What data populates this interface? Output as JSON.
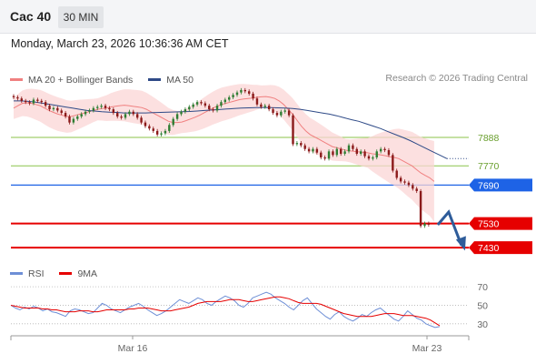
{
  "header": {
    "instrument": "Cac 40",
    "interval": "30 MIN"
  },
  "datetime": "Monday, March 23, 2026 10:36:36 AM CET",
  "legend": {
    "ma20_bb": "MA 20 + Bollinger Bands",
    "ma50": "MA 50",
    "copyright": "Research © 2026 Trading Central"
  },
  "rsi_legend": {
    "rsi": "RSI",
    "ma9": "9MA"
  },
  "colors": {
    "ma20": "#f08080",
    "ma50": "#2e4a87",
    "support": "#e60000",
    "pivot": "#1e63e6",
    "resistance": "#8bc34a",
    "rsi": "#6e8fd6",
    "candle_up": "#2e7d32",
    "candle_down": "#8b1a1a"
  },
  "chart_data": {
    "type": "candlestick",
    "price_range": [
      7400,
      8100
    ],
    "levels": [
      {
        "value": 7888,
        "label": "7888",
        "kind": "resistance"
      },
      {
        "value": 7770,
        "label": "7770",
        "kind": "resistance"
      },
      {
        "value": 7690,
        "label": "7690",
        "kind": "pivot"
      },
      {
        "value": 7530,
        "label": "7530",
        "kind": "support"
      },
      {
        "value": 7430,
        "label": "7430",
        "kind": "support"
      }
    ],
    "close_approx": [
      8055,
      8050,
      8040,
      8035,
      8030,
      8045,
      8040,
      8035,
      8020,
      8005,
      8010,
      8000,
      7990,
      7975,
      7950,
      7965,
      7975,
      7985,
      7995,
      8000,
      8010,
      8015,
      8020,
      8010,
      8005,
      7990,
      7975,
      7970,
      7985,
      7995,
      7985,
      7970,
      7950,
      7935,
      7925,
      7915,
      7900,
      7905,
      7915,
      7940,
      7965,
      7985,
      7995,
      8005,
      8015,
      8025,
      8035,
      8030,
      8020,
      8005,
      8000,
      8020,
      8035,
      8045,
      8055,
      8065,
      8075,
      8085,
      8080,
      8070,
      8050,
      8025,
      8015,
      8020,
      8005,
      7990,
      7980,
      7995,
      8000,
      7980,
      7860,
      7865,
      7855,
      7840,
      7830,
      7840,
      7825,
      7805,
      7800,
      7830,
      7815,
      7840,
      7820,
      7830,
      7855,
      7840,
      7820,
      7830,
      7810,
      7800,
      7805,
      7830,
      7840,
      7835,
      7815,
      7750,
      7720,
      7705,
      7700,
      7690,
      7675,
      7665,
      7520,
      7530,
      7525
    ],
    "ma20_approx": [
      8010,
      8020,
      8030,
      8032,
      8030,
      8025,
      8020,
      8010,
      8000,
      7992,
      7985,
      7980,
      7975,
      7975,
      7980,
      7985,
      7990,
      7995,
      8000,
      8005,
      8008,
      8010,
      8015,
      8018,
      8020,
      8022,
      8020,
      8017,
      8015,
      8012,
      8005,
      7995,
      7985,
      7975,
      7965,
      7955,
      7950,
      7950,
      7952,
      7958,
      7965,
      7972,
      7980,
      7990,
      8000,
      8010,
      8018,
      8025,
      8030,
      8035,
      8040,
      8045,
      8048,
      8050,
      8052,
      8055,
      8057,
      8058,
      8055,
      8050,
      8040,
      8025,
      8005,
      7985,
      7960,
      7935,
      7915,
      7900,
      7890,
      7880,
      7870,
      7860,
      7850,
      7845,
      7840,
      7835,
      7832,
      7830,
      7828,
      7826,
      7824,
      7820,
      7818,
      7815,
      7812,
      7808,
      7805,
      7800,
      7790,
      7780,
      7770,
      7755,
      7740,
      7730,
      7720,
      7705
    ],
    "ma50_approx": [
      8040,
      8040,
      8038,
      8035,
      8030,
      8025,
      8020,
      8015,
      8010,
      8005,
      8000,
      7998,
      7995,
      7993,
      7992,
      7990,
      7990,
      7990,
      7990,
      7991,
      7992,
      7993,
      7994,
      7995,
      7996,
      7998,
      8000,
      8002,
      8004,
      8006,
      8008,
      8010,
      8011,
      8012,
      8012,
      8012,
      8011,
      8010,
      8008,
      8005,
      8000,
      7995,
      7990,
      7985,
      7978,
      7970,
      7962,
      7955,
      7945,
      7935,
      7925,
      7912,
      7900,
      7888,
      7875,
      7860,
      7845,
      7830,
      7815,
      7800
    ],
    "rsi_scale": [
      30,
      50,
      70
    ],
    "rsi_approx": [
      50,
      47,
      45,
      48,
      46,
      49,
      47,
      44,
      46,
      43,
      42,
      40,
      38,
      44,
      46,
      45,
      43,
      41,
      42,
      47,
      52,
      50,
      46,
      44,
      42,
      45,
      48,
      50,
      52,
      49,
      45,
      42,
      39,
      41,
      44,
      48,
      52,
      56,
      54,
      52,
      55,
      58,
      56,
      52,
      50,
      54,
      57,
      60,
      58,
      55,
      50,
      48,
      52,
      58,
      60,
      62,
      64,
      62,
      58,
      55,
      52,
      48,
      45,
      50,
      55,
      58,
      52,
      46,
      42,
      38,
      35,
      40,
      43,
      38,
      35,
      33,
      36,
      40,
      38,
      42,
      45,
      47,
      43,
      39,
      35,
      33,
      38,
      44,
      40,
      36,
      34,
      30,
      28,
      26,
      27
    ],
    "rsi_ma9_approx": [
      50,
      49,
      48,
      47,
      47,
      47,
      47,
      46,
      46,
      45,
      45,
      44,
      43,
      43,
      43,
      44,
      44,
      44,
      43,
      43,
      44,
      45,
      45,
      45,
      45,
      45,
      46,
      46,
      47,
      47,
      47,
      46,
      45,
      44,
      44,
      44,
      45,
      46,
      47,
      48,
      50,
      52,
      53,
      54,
      54,
      54,
      54,
      55,
      56,
      56,
      56,
      55,
      54,
      54,
      55,
      56,
      57,
      58,
      59,
      59,
      58,
      57,
      55,
      53,
      52,
      52,
      52,
      52,
      51,
      49,
      47,
      45,
      43,
      41,
      40,
      39,
      38,
      38,
      38,
      38,
      39,
      40,
      41,
      41,
      41,
      40,
      39,
      39,
      39,
      38,
      37,
      36,
      34,
      31,
      28
    ],
    "x_ticks": [
      "Mar 16",
      "Mar 23"
    ]
  }
}
